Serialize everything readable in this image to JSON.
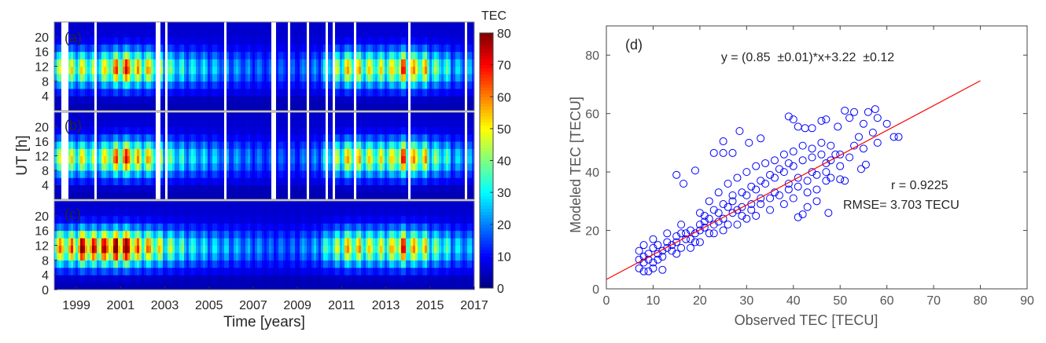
{
  "chart_data": [
    {
      "type": "heatmap",
      "panel_label": "(a)",
      "xlabel": "Time [years]",
      "ylabel": "UT [h]",
      "xlim": [
        1998,
        2017
      ],
      "ylim": [
        0,
        24
      ],
      "xticks": [
        "1999",
        "2001",
        "2003",
        "2005",
        "2007",
        "2009",
        "2011",
        "2013",
        "2015",
        "2017"
      ],
      "yticks": [
        "4",
        "8",
        "12",
        "16",
        "20"
      ],
      "semiannual_peak_TEC": {
        "years": [
          1998,
          1999,
          2000,
          2001,
          2002,
          2003,
          2004,
          2005,
          2006,
          2007,
          2008,
          2009,
          2010,
          2011,
          2012,
          2013,
          2014,
          2015,
          2016
        ],
        "spring": [
          50,
          55,
          55,
          75,
          60,
          42,
          34,
          30,
          26,
          22,
          20,
          22,
          35,
          60,
          55,
          55,
          62,
          45,
          30
        ],
        "autumn": [
          55,
          50,
          70,
          62,
          52,
          38,
          33,
          28,
          24,
          20,
          20,
          24,
          50,
          60,
          55,
          75,
          62,
          40,
          28
        ]
      },
      "data_gaps": [
        [
          1998.35,
          1998.6
        ],
        [
          1998.75,
          1998.8
        ],
        [
          1999.05,
          1999.12
        ],
        [
          1999.35,
          1999.42
        ],
        [
          1999.8,
          1999.95
        ],
        [
          2002.55,
          2002.8
        ],
        [
          2003.0,
          2003.1
        ],
        [
          2005.7,
          2005.8
        ],
        [
          2007.8,
          2008.05
        ],
        [
          2008.6,
          2008.65
        ],
        [
          2009.45,
          2009.5
        ],
        [
          2010.3,
          2010.35
        ],
        [
          2010.6,
          2010.65
        ],
        [
          2011.6,
          2011.65
        ],
        [
          2012.4,
          2012.45
        ],
        [
          2014.05,
          2014.1
        ],
        [
          2015.9,
          2015.95
        ],
        [
          2016.6,
          2016.65
        ]
      ]
    },
    {
      "type": "heatmap",
      "panel_label": "(b)",
      "xlim": [
        1998,
        2017
      ],
      "ylim": [
        0,
        24
      ],
      "yticks": [
        "4",
        "8",
        "12",
        "16",
        "20"
      ],
      "semiannual_peak_TEC": {
        "years": [
          1998,
          1999,
          2000,
          2001,
          2002,
          2003,
          2004,
          2005,
          2006,
          2007,
          2008,
          2009,
          2010,
          2011,
          2012,
          2013,
          2014,
          2015,
          2016
        ],
        "spring": [
          50,
          55,
          55,
          75,
          60,
          42,
          34,
          30,
          26,
          22,
          20,
          22,
          35,
          60,
          55,
          55,
          62,
          45,
          30
        ],
        "autumn": [
          55,
          50,
          70,
          62,
          52,
          38,
          33,
          28,
          24,
          20,
          20,
          24,
          50,
          60,
          55,
          75,
          62,
          40,
          28
        ]
      },
      "data_gaps": [
        [
          1998.35,
          1998.6
        ],
        [
          1998.75,
          1998.8
        ],
        [
          1999.05,
          1999.12
        ],
        [
          1999.35,
          1999.42
        ],
        [
          1999.8,
          1999.95
        ],
        [
          2002.55,
          2002.8
        ],
        [
          2003.0,
          2003.1
        ],
        [
          2005.7,
          2005.8
        ],
        [
          2007.8,
          2008.05
        ],
        [
          2008.6,
          2008.65
        ],
        [
          2009.45,
          2009.5
        ],
        [
          2010.3,
          2010.35
        ],
        [
          2010.6,
          2010.65
        ],
        [
          2011.6,
          2011.65
        ],
        [
          2012.4,
          2012.45
        ],
        [
          2014.05,
          2014.1
        ],
        [
          2015.9,
          2015.95
        ],
        [
          2016.6,
          2016.65
        ]
      ]
    },
    {
      "type": "heatmap",
      "panel_label": "(c)",
      "xlim": [
        1998,
        2017
      ],
      "ylim": [
        0,
        24
      ],
      "yticks": [
        "0",
        "4",
        "8",
        "12",
        "16",
        "20"
      ],
      "semiannual_peak_TEC": {
        "years": [
          1998,
          1999,
          2000,
          2001,
          2002,
          2003,
          2004,
          2005,
          2006,
          2007,
          2008,
          2009,
          2010,
          2011,
          2012,
          2013,
          2014,
          2015,
          2016
        ],
        "spring": [
          65,
          85,
          80,
          90,
          65,
          48,
          36,
          32,
          28,
          25,
          22,
          25,
          38,
          62,
          55,
          58,
          62,
          45,
          32
        ],
        "autumn": [
          70,
          80,
          90,
          70,
          58,
          42,
          35,
          30,
          26,
          22,
          22,
          28,
          52,
          62,
          55,
          78,
          60,
          40,
          30
        ]
      },
      "data_gaps": []
    },
    {
      "type": "colorbar",
      "title": "TEC",
      "colormap": "jet",
      "range": [
        0,
        80
      ],
      "ticks": [
        "0",
        "10",
        "20",
        "30",
        "40",
        "50",
        "60",
        "70",
        "80"
      ]
    },
    {
      "type": "scatter",
      "panel_label": "(d)",
      "xlabel": "Observed TEC [TECU]",
      "ylabel": "Modeled TEC [TECU]",
      "xlim": [
        0,
        90
      ],
      "ylim": [
        0,
        90
      ],
      "xticks": [
        "0",
        "10",
        "20",
        "30",
        "40",
        "50",
        "60",
        "70",
        "80",
        "90"
      ],
      "yticks": [
        "0",
        "20",
        "40",
        "60",
        "80"
      ],
      "marker_color": "#0000ff",
      "fit_color": "#ff0000",
      "fit": {
        "slope": 0.85,
        "intercept": 3.22,
        "x_range": [
          0,
          80
        ]
      },
      "equation": "y = (0.85  ±0.01)*x+3.22  ±0.12",
      "r_text": "r = 0.9225",
      "rmse_text": "RMSE= 3.703 TECU",
      "points": [
        [
          39,
          59
        ],
        [
          40,
          58
        ],
        [
          28.5,
          54
        ],
        [
          51,
          61
        ],
        [
          53,
          60.5
        ],
        [
          56,
          60.5
        ],
        [
          57.5,
          61.5
        ],
        [
          58,
          58.5
        ],
        [
          47,
          58
        ],
        [
          46,
          57.5
        ],
        [
          42.5,
          55
        ],
        [
          41,
          55.5
        ],
        [
          44,
          55
        ],
        [
          49.5,
          55.5
        ],
        [
          52,
          58.5
        ],
        [
          55,
          56.5
        ],
        [
          60,
          56.5
        ],
        [
          62.5,
          52
        ],
        [
          61.5,
          52
        ],
        [
          57,
          53.5
        ],
        [
          54,
          52
        ],
        [
          25,
          50.5
        ],
        [
          30.5,
          50
        ],
        [
          33,
          51.5
        ],
        [
          25,
          46.5
        ],
        [
          23,
          46.5
        ],
        [
          27,
          46.5
        ],
        [
          19,
          40.5
        ],
        [
          16.5,
          36
        ],
        [
          15,
          39
        ],
        [
          47.5,
          26
        ],
        [
          41,
          24.5
        ],
        [
          42,
          25.5
        ],
        [
          54.5,
          41
        ],
        [
          55.5,
          42.5
        ],
        [
          51,
          37
        ],
        [
          50,
          37.5
        ],
        [
          47,
          37
        ],
        [
          45,
          30
        ],
        [
          43,
          28
        ],
        [
          7,
          7
        ],
        [
          8,
          6
        ],
        [
          9,
          6
        ],
        [
          10,
          7
        ],
        [
          12,
          6.5
        ],
        [
          7,
          13
        ],
        [
          8,
          15
        ],
        [
          10,
          17
        ],
        [
          13,
          19
        ],
        [
          16,
          22
        ],
        [
          20,
          26
        ],
        [
          22,
          30
        ],
        [
          24,
          33
        ],
        [
          26,
          36
        ],
        [
          28,
          38
        ],
        [
          30,
          40
        ],
        [
          32,
          42
        ],
        [
          34,
          43
        ],
        [
          36,
          44
        ],
        [
          38,
          46
        ],
        [
          40,
          47
        ],
        [
          42,
          49
        ],
        [
          44,
          48
        ],
        [
          46,
          50
        ],
        [
          48,
          49
        ],
        [
          15,
          12
        ],
        [
          18,
          14
        ],
        [
          20,
          16
        ],
        [
          23,
          19
        ],
        [
          25,
          20
        ],
        [
          28,
          22
        ],
        [
          30,
          24
        ],
        [
          32,
          25
        ],
        [
          35,
          27
        ],
        [
          38,
          29
        ],
        [
          40,
          31
        ],
        [
          43,
          33
        ],
        [
          45,
          34
        ],
        [
          48,
          38
        ],
        [
          50,
          42
        ],
        [
          52,
          45
        ],
        [
          55,
          48
        ],
        [
          58,
          50
        ],
        [
          9,
          10
        ],
        [
          11,
          12
        ],
        [
          13,
          14
        ],
        [
          17,
          17
        ],
        [
          19,
          19
        ],
        [
          21,
          21
        ],
        [
          24,
          23
        ],
        [
          27,
          26
        ],
        [
          29,
          28
        ],
        [
          31,
          29
        ],
        [
          33,
          31
        ],
        [
          36,
          33
        ],
        [
          39,
          36
        ],
        [
          41,
          38
        ],
        [
          44,
          40
        ],
        [
          47,
          43
        ],
        [
          49,
          46
        ],
        [
          53,
          49
        ],
        [
          8,
          9
        ],
        [
          9,
          12
        ],
        [
          10,
          9
        ],
        [
          11,
          10
        ],
        [
          12,
          13
        ],
        [
          12,
          11
        ],
        [
          14,
          15
        ],
        [
          14,
          13
        ],
        [
          15,
          16
        ],
        [
          16,
          14
        ],
        [
          17,
          19
        ],
        [
          18,
          17
        ],
        [
          19,
          16
        ],
        [
          20,
          20
        ],
        [
          21,
          23
        ],
        [
          22,
          19
        ],
        [
          23,
          22
        ],
        [
          24,
          26
        ],
        [
          25,
          24
        ],
        [
          26,
          28
        ],
        [
          26,
          22
        ],
        [
          27,
          30
        ],
        [
          28,
          27
        ],
        [
          29,
          25
        ],
        [
          30,
          32
        ],
        [
          31,
          27
        ],
        [
          32,
          34
        ],
        [
          33,
          29
        ],
        [
          34,
          36
        ],
        [
          35,
          31
        ],
        [
          36,
          38
        ],
        [
          37,
          32
        ],
        [
          38,
          40
        ],
        [
          39,
          34
        ],
        [
          40,
          42
        ],
        [
          41,
          35
        ],
        [
          42,
          44
        ],
        [
          43,
          37
        ],
        [
          44,
          45
        ],
        [
          45,
          39
        ],
        [
          46,
          46
        ],
        [
          47,
          40
        ],
        [
          48,
          44
        ],
        [
          50,
          46
        ],
        [
          7,
          10
        ],
        [
          8,
          11
        ],
        [
          10,
          14
        ],
        [
          11,
          15
        ],
        [
          13,
          16
        ],
        [
          15,
          18
        ],
        [
          16,
          19
        ],
        [
          18,
          20
        ],
        [
          20,
          22
        ],
        [
          21,
          25
        ],
        [
          22,
          24
        ],
        [
          23,
          27
        ],
        [
          25,
          29
        ],
        [
          27,
          32
        ],
        [
          29,
          33
        ],
        [
          31,
          35
        ],
        [
          33,
          37
        ],
        [
          35,
          39
        ],
        [
          37,
          41
        ],
        [
          39,
          43
        ]
      ]
    }
  ]
}
